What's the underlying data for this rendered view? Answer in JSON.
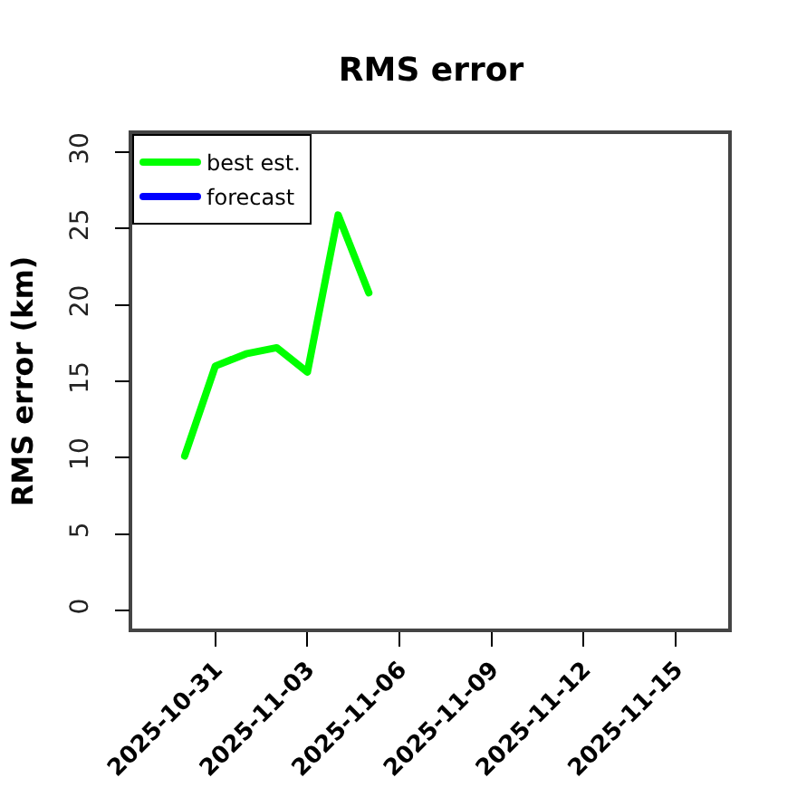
{
  "chart_data": {
    "type": "line",
    "title": "RMS error",
    "ylabel": "RMS error (km)",
    "x": [
      "2025-10-30",
      "2025-10-31",
      "2025-11-01",
      "2025-11-02",
      "2025-11-03",
      "2025-11-04",
      "2025-11-05"
    ],
    "series": [
      {
        "name": "best est.",
        "color": "#00ff00",
        "values": [
          10.1,
          16.0,
          16.8,
          17.2,
          15.6,
          25.9,
          20.8
        ]
      },
      {
        "name": "forecast",
        "color": "#0000ff",
        "values": [
          null,
          null,
          null,
          null,
          null,
          null,
          null
        ]
      }
    ],
    "xlim": [
      "2025-10-28T07:00",
      "2025-11-16T17:00"
    ],
    "ylim": [
      -1.2,
      31.2
    ],
    "xticks": [
      "2025-10-31",
      "2025-11-03",
      "2025-11-06",
      "2025-11-09",
      "2025-11-12",
      "2025-11-15"
    ],
    "yticks": [
      0,
      5,
      10,
      15,
      20,
      25,
      30
    ],
    "legend": "top left",
    "grid": false,
    "marker": "none",
    "line_style": "solid"
  }
}
